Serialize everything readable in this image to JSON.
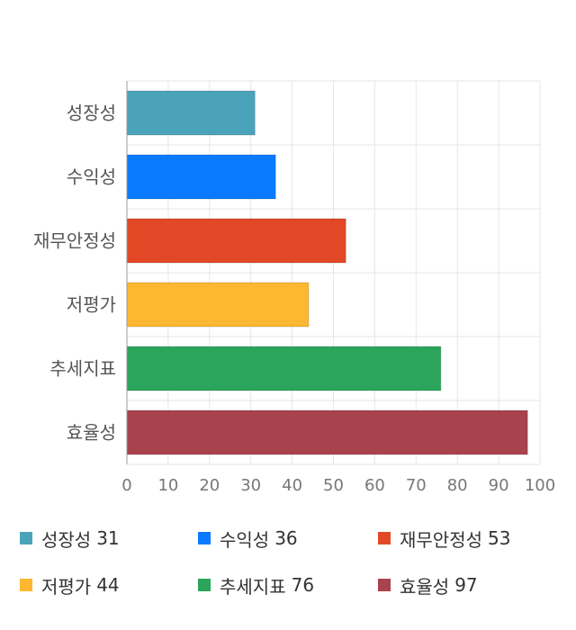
{
  "chart_data": {
    "type": "bar",
    "orientation": "horizontal",
    "categories": [
      "성장성",
      "수익성",
      "재무안정성",
      "저평가",
      "추세지표",
      "효율성"
    ],
    "values": [
      31,
      36,
      53,
      44,
      76,
      97
    ],
    "colors": [
      "#4BA3BA",
      "#0A7BFF",
      "#E24826",
      "#FDB731",
      "#2AA55A",
      "#A8434E"
    ],
    "xlim": [
      0,
      100
    ],
    "xticks": [
      0,
      10,
      20,
      30,
      40,
      50,
      60,
      70,
      80,
      90,
      100
    ],
    "grid": true,
    "legend_position": "bottom"
  },
  "legend": [
    {
      "label": "성장성",
      "value": "31",
      "color": "#4BA3BA"
    },
    {
      "label": "수익성",
      "value": "36",
      "color": "#0A7BFF"
    },
    {
      "label": "재무안정성",
      "value": "53",
      "color": "#E24826"
    },
    {
      "label": "저평가",
      "value": "44",
      "color": "#FDB731"
    },
    {
      "label": "추세지표",
      "value": "76",
      "color": "#2AA55A"
    },
    {
      "label": "효율성",
      "value": "97",
      "color": "#A8434E"
    }
  ]
}
